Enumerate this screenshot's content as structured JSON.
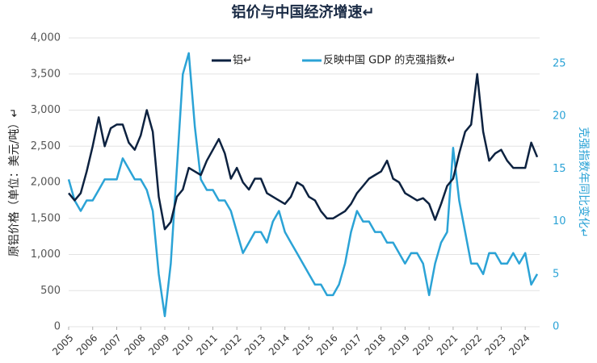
{
  "chart_data": {
    "type": "line",
    "title": "铝价与中国经济增速↵",
    "y_label": "原铝价格（单位：美元/吨）↵",
    "y2_label": "克强指数年同比变化↵",
    "x": [
      2005,
      2005.25,
      2005.5,
      2005.75,
      2006,
      2006.25,
      2006.5,
      2006.75,
      2007,
      2007.25,
      2007.5,
      2007.75,
      2008,
      2008.25,
      2008.5,
      2008.75,
      2009,
      2009.25,
      2009.5,
      2009.75,
      2010,
      2010.25,
      2010.5,
      2010.75,
      2011,
      2011.25,
      2011.5,
      2011.75,
      2012,
      2012.25,
      2012.5,
      2012.75,
      2013,
      2013.25,
      2013.5,
      2013.75,
      2014,
      2014.25,
      2014.5,
      2014.75,
      2015,
      2015.25,
      2015.5,
      2015.75,
      2016,
      2016.25,
      2016.5,
      2016.75,
      2017,
      2017.25,
      2017.5,
      2017.75,
      2018,
      2018.25,
      2018.5,
      2018.75,
      2019,
      2019.25,
      2019.5,
      2019.75,
      2020,
      2020.25,
      2020.5,
      2020.75,
      2021,
      2021.25,
      2021.5,
      2021.75,
      2022,
      2022.25,
      2022.5,
      2022.75,
      2023,
      2023.25,
      2023.5,
      2023.75,
      2024,
      2024.25,
      2024.5
    ],
    "xlim": [
      2005,
      2024.6
    ],
    "xticks": [
      2005,
      2006,
      2007,
      2008,
      2009,
      2010,
      2011,
      2012,
      2013,
      2014,
      2015,
      2016,
      2017,
      2018,
      2019,
      2020,
      2021,
      2022,
      2023,
      2024
    ],
    "ylim": [
      0,
      4000
    ],
    "yticks": [
      0,
      500,
      {
        "value": 1000,
        "label": "1,000"
      },
      {
        "value": 1500,
        "label": "1,500"
      },
      {
        "value": 2000,
        "label": "2,000"
      },
      {
        "value": 2500,
        "label": "2,500"
      },
      {
        "value": 3000,
        "label": "3,000"
      },
      {
        "value": 3500,
        "label": "3,500"
      },
      {
        "value": 4000,
        "label": "4,000"
      }
    ],
    "y2lim": [
      0,
      27.45
    ],
    "y2ticks": [
      0,
      5,
      10,
      15,
      20,
      25
    ],
    "grid": true,
    "series": [
      {
        "name": "铝↵",
        "color": "#0d2240",
        "values": [
          1850,
          1750,
          1850,
          2150,
          2500,
          2900,
          2500,
          2750,
          2800,
          2800,
          2550,
          2450,
          2650,
          3000,
          2700,
          1800,
          1350,
          1450,
          1800,
          1900,
          2200,
          2150,
          2100,
          2300,
          2450,
          2600,
          2400,
          2050,
          2200,
          2000,
          1900,
          2050,
          2050,
          1850,
          1800,
          1750,
          1700,
          1800,
          2000,
          1950,
          1800,
          1750,
          1600,
          1500,
          1500,
          1550,
          1600,
          1700,
          1850,
          1950,
          2050,
          2100,
          2150,
          2300,
          2050,
          2000,
          1850,
          1800,
          1750,
          1780,
          1700,
          1480,
          1700,
          1950,
          2050,
          2400,
          2700,
          2800,
          3500,
          2700,
          2300,
          2400,
          2450,
          2300,
          2200,
          2200,
          2200,
          2550,
          2350
        ]
      },
      {
        "name": "反映中国 GDP 的克强指数↵",
        "color": "#2ba3d6",
        "axis": "y2",
        "values": [
          14,
          12,
          11,
          12,
          12,
          13,
          14,
          14,
          14,
          16,
          15,
          14,
          14,
          13,
          11,
          5,
          1,
          6,
          15,
          24,
          26,
          19,
          14,
          13,
          13,
          12,
          12,
          11,
          9,
          7,
          8,
          9,
          9,
          8,
          10,
          11,
          9,
          8,
          7,
          6,
          5,
          4,
          4,
          3,
          3,
          4,
          6,
          9,
          11,
          10,
          10,
          9,
          9,
          8,
          8,
          7,
          6,
          7,
          7,
          6,
          3,
          6,
          8,
          9,
          17,
          12,
          9,
          6,
          6,
          5,
          7,
          7,
          6,
          6,
          7,
          6,
          7,
          4,
          5
        ]
      }
    ]
  }
}
